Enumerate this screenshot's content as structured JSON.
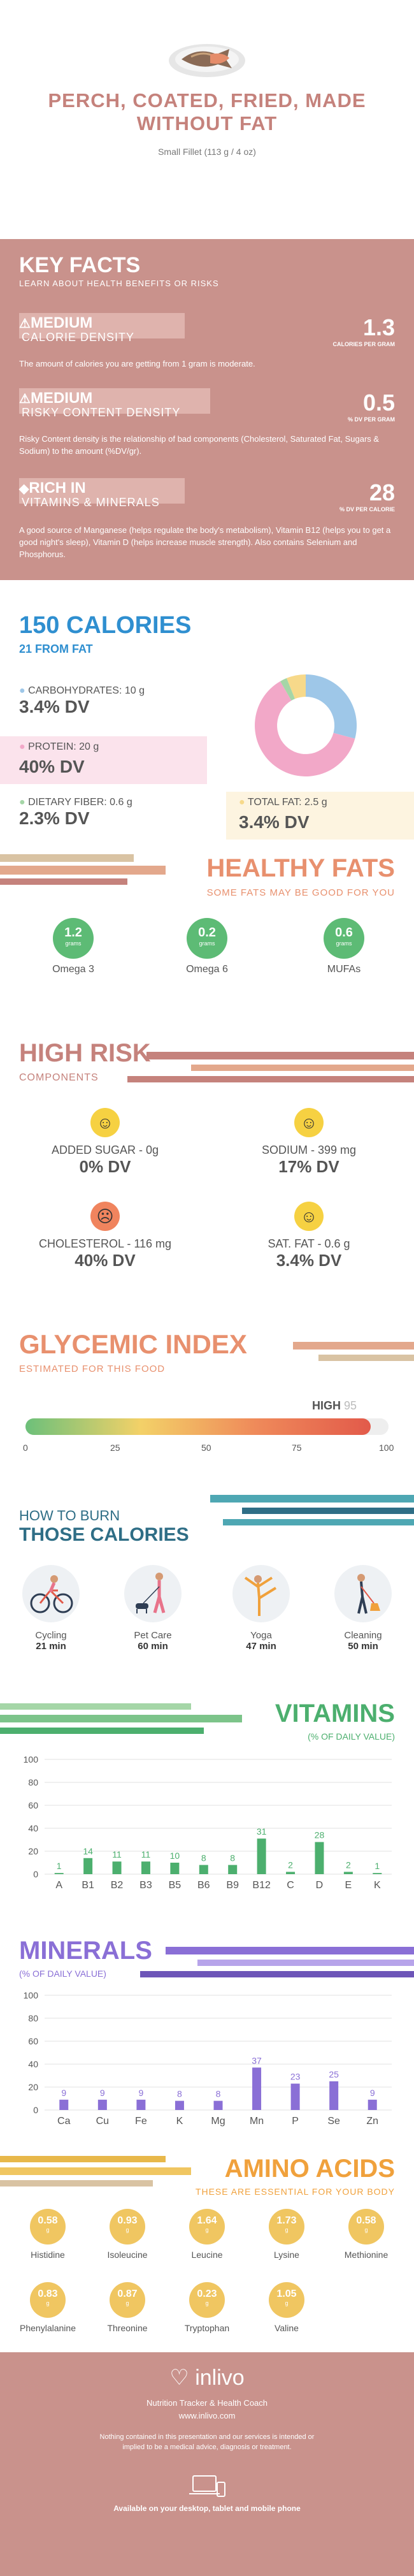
{
  "header": {
    "title": "PERCH, COATED, FRIED, MADE WITHOUT FAT",
    "serving": "Small Fillet (113 g / 4 oz)"
  },
  "key_facts": {
    "title": "KEY FACTS",
    "subtitle": "LEARN ABOUT HEALTH BENEFITS OR RISKS",
    "items": [
      {
        "level": "MEDIUM",
        "label": "CALORIE DENSITY",
        "value": "1.3",
        "unit": "CALORIES PER GRAM",
        "desc": "The amount of calories you are getting from 1 gram is moderate."
      },
      {
        "level": "MEDIUM",
        "label": "RISKY CONTENT DENSITY",
        "value": "0.5",
        "unit": "% DV PER GRAM",
        "desc": "Risky Content density is the relationship of bad components (Cholesterol, Saturated Fat, Sugars & Sodium) to the amount (%DV/gr)."
      },
      {
        "level": "RICH IN",
        "label": "VITAMINS & MINERALS",
        "value": "28",
        "unit": "% DV PER CALORIE",
        "desc": "A good source of Manganese (helps regulate the body's metabolism), Vitamin B12 (helps you to get a good night's sleep), Vitamin D (helps increase muscle strength). Also contains Selenium and Phosphorus."
      }
    ]
  },
  "calories": {
    "title": "150 CALORIES",
    "subtitle": "21 FROM FAT",
    "carbs_label": "CARBOHYDRATES: 10 g",
    "carbs_dv": "3.4% DV",
    "protein_label": "PROTEIN: 20 g",
    "protein_dv": "40% DV",
    "fiber_label": "DIETARY FIBER: 0.6 g",
    "fiber_dv": "2.3% DV",
    "fat_label": "TOTAL FAT: 2.5 g",
    "fat_dv": "3.4% DV",
    "colors": {
      "carbs": "#9ec7e8",
      "protein": "#f2a8c8",
      "fiber": "#a5d6a7",
      "fat": "#f7d98a"
    }
  },
  "healthy_fats": {
    "title": "HEALTHY FATS",
    "subtitle": "SOME FATS MAY BE GOOD FOR YOU",
    "items": [
      {
        "value": "1.2",
        "unit": "grams",
        "name": "Omega 3"
      },
      {
        "value": "0.2",
        "unit": "grams",
        "name": "Omega 6"
      },
      {
        "value": "0.6",
        "unit": "grams",
        "name": "MUFAs"
      }
    ]
  },
  "high_risk": {
    "title": "HIGH RISK",
    "subtitle": "COMPONENTS",
    "items": [
      {
        "label": "ADDED SUGAR - 0g",
        "dv": "0% DV",
        "mood": "happy"
      },
      {
        "label": "SODIUM - 399 mg",
        "dv": "17% DV",
        "mood": "happy"
      },
      {
        "label": "CHOLESTEROL - 116 mg",
        "dv": "40% DV",
        "mood": "sad"
      },
      {
        "label": "SAT. FAT - 0.6 g",
        "dv": "3.4% DV",
        "mood": "happy"
      }
    ]
  },
  "glycemic": {
    "title": "GLYCEMIC INDEX",
    "subtitle": "ESTIMATED FOR THIS FOOD",
    "level": "HIGH",
    "value": "95",
    "ticks": [
      "0",
      "25",
      "50",
      "75",
      "100"
    ]
  },
  "burn": {
    "title_line1": "HOW TO BURN",
    "title_line2": "THOSE CALORIES",
    "items": [
      {
        "name": "Cycling",
        "time": "21 min",
        "icon": "cycling-icon"
      },
      {
        "name": "Pet Care",
        "time": "60 min",
        "icon": "dog-walking-icon"
      },
      {
        "name": "Yoga",
        "time": "47 min",
        "icon": "yoga-icon"
      },
      {
        "name": "Cleaning",
        "time": "50 min",
        "icon": "cleaning-icon"
      }
    ]
  },
  "vitamins": {
    "title": "VITAMINS",
    "subtitle": "(% OF DAILY VALUE)",
    "yticks": [
      "100",
      "80",
      "60",
      "40",
      "20",
      "0"
    ]
  },
  "minerals": {
    "title": "MINERALS",
    "subtitle": "(% OF DAILY VALUE)",
    "yticks": [
      "100",
      "80",
      "60",
      "40",
      "20",
      "0"
    ]
  },
  "amino": {
    "title": "AMINO ACIDS",
    "subtitle": "THESE ARE ESSENTIAL FOR YOUR BODY",
    "items": [
      {
        "value": "0.58",
        "name": "Histidine"
      },
      {
        "value": "0.93",
        "name": "Isoleucine"
      },
      {
        "value": "1.64",
        "name": "Leucine"
      },
      {
        "value": "1.73",
        "name": "Lysine"
      },
      {
        "value": "0.58",
        "name": "Methionine"
      },
      {
        "value": "0.83",
        "name": "Phenylalanine"
      },
      {
        "value": "0.87",
        "name": "Threonine"
      },
      {
        "value": "0.23",
        "name": "Tryptophan"
      },
      {
        "value": "1.05",
        "name": "Valine"
      }
    ],
    "unit": "g"
  },
  "footer": {
    "brand": "inlivo",
    "tagline": "Nutrition Tracker & Health Coach",
    "url": "www.inlivo.com",
    "disclaimer": "Nothing contained in this presentation and our services is intended or implied to be a medical advice, diagnosis or treatment.",
    "available": "Available on your desktop, tablet and mobile phone"
  },
  "chart_data": [
    {
      "type": "bar",
      "title": "VITAMINS",
      "ylabel": "(% OF DAILY VALUE)",
      "categories": [
        "A",
        "B1",
        "B2",
        "B3",
        "B5",
        "B6",
        "B9",
        "B12",
        "C",
        "D",
        "E",
        "K"
      ],
      "values": [
        1,
        14,
        11,
        11,
        10,
        8,
        8,
        31,
        2,
        28,
        2,
        1
      ],
      "ylim": [
        0,
        100
      ],
      "color": "#4caf6e"
    },
    {
      "type": "bar",
      "title": "MINERALS",
      "ylabel": "(% OF DAILY VALUE)",
      "categories": [
        "Ca",
        "Cu",
        "Fe",
        "K",
        "Mg",
        "Mn",
        "P",
        "Se",
        "Zn"
      ],
      "values": [
        9,
        9,
        9,
        8,
        8,
        37,
        23,
        25,
        9
      ],
      "ylim": [
        0,
        100
      ],
      "color": "#8a6fd6"
    }
  ]
}
